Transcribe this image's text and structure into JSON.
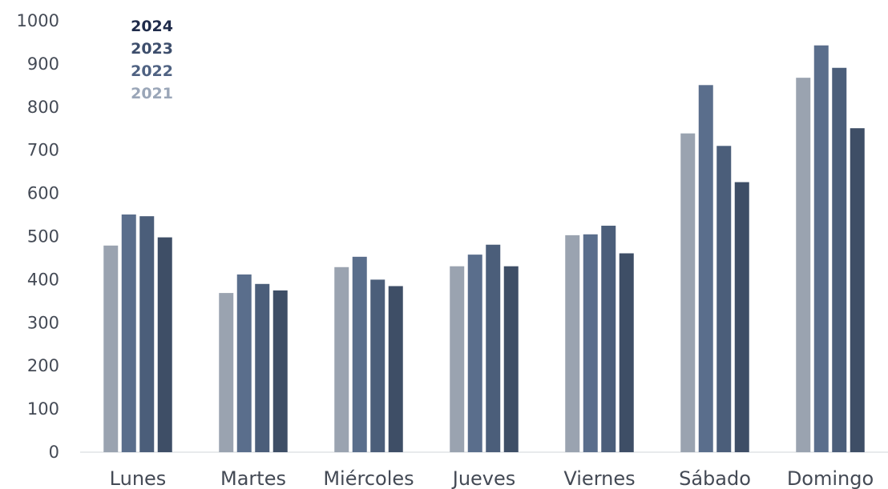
{
  "chart_data": {
    "type": "bar",
    "categories": [
      "Lunes",
      "Martes",
      "Miércoles",
      "Jueves",
      "Viernes",
      "Sábado",
      "Domingo"
    ],
    "series": [
      {
        "name": "2021",
        "color": "#9aa3b0",
        "values": [
          479,
          369,
          429,
          431,
          503,
          739,
          868
        ]
      },
      {
        "name": "2022",
        "color": "#5a6e8c",
        "values": [
          551,
          412,
          453,
          458,
          505,
          851,
          943
        ]
      },
      {
        "name": "2023",
        "color": "#4b5e7a",
        "values": [
          547,
          390,
          400,
          481,
          525,
          710,
          891
        ]
      },
      {
        "name": "2024",
        "color": "#3e4e66",
        "values": [
          498,
          375,
          385,
          431,
          461,
          626,
          751
        ]
      }
    ],
    "legend_order": [
      "2024",
      "2023",
      "2022",
      "2021"
    ],
    "legend_colors": {
      "2024": "#1f2b4a",
      "2023": "#3d4e6c",
      "2022": "#4f6282",
      "2021": "#9aa6b8"
    },
    "y_ticks": [
      "0",
      "100",
      "200",
      "300",
      "400",
      "500",
      "600",
      "700",
      "800",
      "900",
      "1000"
    ],
    "ylim": [
      0,
      1000
    ],
    "grid": false,
    "legend_position": "top-left",
    "title": "",
    "xlabel": "",
    "ylabel": ""
  }
}
